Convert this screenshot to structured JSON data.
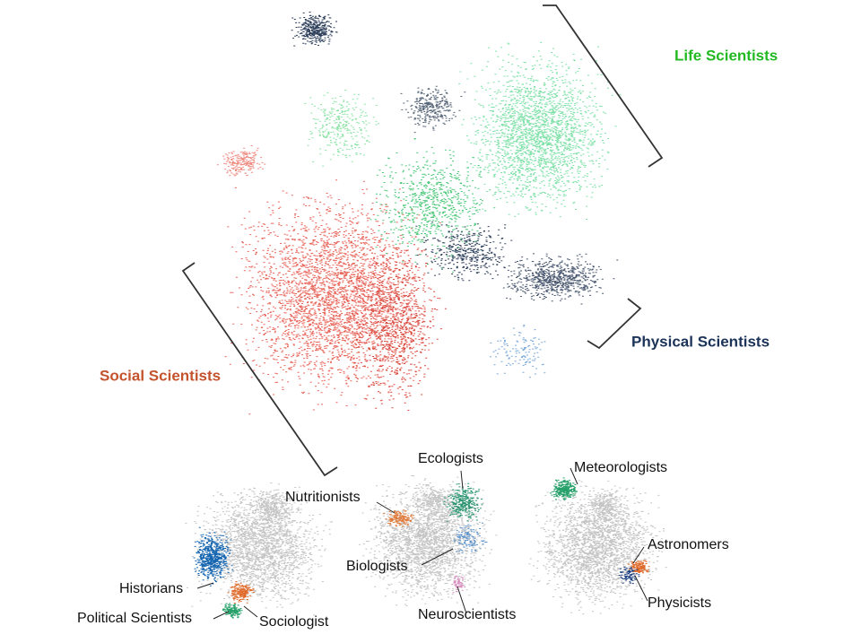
{
  "main": {
    "groups": [
      {
        "label": "Life Scientists",
        "color": "#22b922"
      },
      {
        "label": "Physical Scientists",
        "color": "#1b3358"
      },
      {
        "label": "Social Scientists",
        "color": "#c4532d"
      }
    ]
  },
  "panels": [
    {
      "labels": [
        "Historians",
        "Political Scientists",
        "Sociologist"
      ]
    },
    {
      "labels": [
        "Ecologists",
        "Nutritionists",
        "Biologists",
        "Neuroscientists"
      ]
    },
    {
      "labels": [
        "Meteorologists",
        "Astronomers",
        "Physicists"
      ]
    }
  ]
}
